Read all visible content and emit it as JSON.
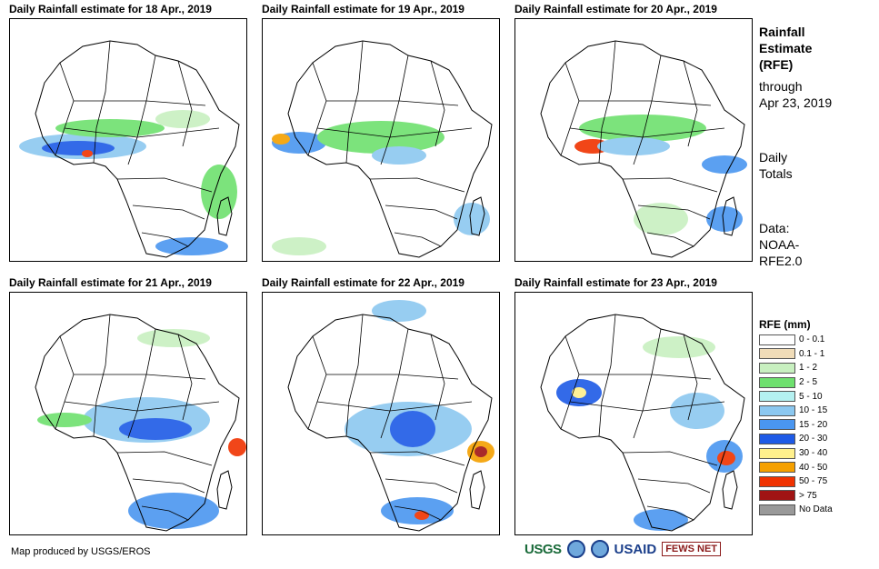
{
  "panels": [
    {
      "title": "Daily Rainfall estimate for 18 Apr., 2019"
    },
    {
      "title": "Daily Rainfall estimate for 19 Apr., 2019"
    },
    {
      "title": "Daily Rainfall estimate for 20 Apr., 2019"
    },
    {
      "title": "Daily Rainfall estimate for 21 Apr., 2019"
    },
    {
      "title": "Daily Rainfall estimate for 22 Apr., 2019"
    },
    {
      "title": "Daily Rainfall estimate for 23 Apr., 2019"
    }
  ],
  "sidebar": {
    "heading_line1": "Rainfall",
    "heading_line2": "Estimate",
    "heading_line3": "(RFE)",
    "through_line1": "through",
    "through_line2": "Apr 23, 2019",
    "totals_line1": "Daily",
    "totals_line2": "Totals",
    "data_line1": "Data:",
    "data_line2": "NOAA-",
    "data_line3": "RFE2.0"
  },
  "legend": {
    "title": "RFE (mm)",
    "items": [
      {
        "label": "0 - 0.1",
        "color": "#ffffff"
      },
      {
        "label": "0.1 - 1",
        "color": "#f0dcb8"
      },
      {
        "label": "1 - 2",
        "color": "#c8f0c0"
      },
      {
        "label": "2 - 5",
        "color": "#6ee06e"
      },
      {
        "label": "5 - 10",
        "color": "#b4f0f0"
      },
      {
        "label": "10 - 15",
        "color": "#8cc8f0"
      },
      {
        "label": "15 - 20",
        "color": "#4a96f0"
      },
      {
        "label": "20 - 30",
        "color": "#1e5ae6"
      },
      {
        "label": "30 - 40",
        "color": "#fff08c"
      },
      {
        "label": "40 - 50",
        "color": "#f5a000"
      },
      {
        "label": "50 - 75",
        "color": "#f03200"
      },
      {
        "label": "> 75",
        "color": "#a01414"
      },
      {
        "label": "No Data",
        "color": "#999999"
      }
    ]
  },
  "footer": {
    "credit": "Map produced by USGS/EROS",
    "logo_usgs": "USGS",
    "logo_usaid": "USAID",
    "logo_fews": "FEWS NET"
  }
}
